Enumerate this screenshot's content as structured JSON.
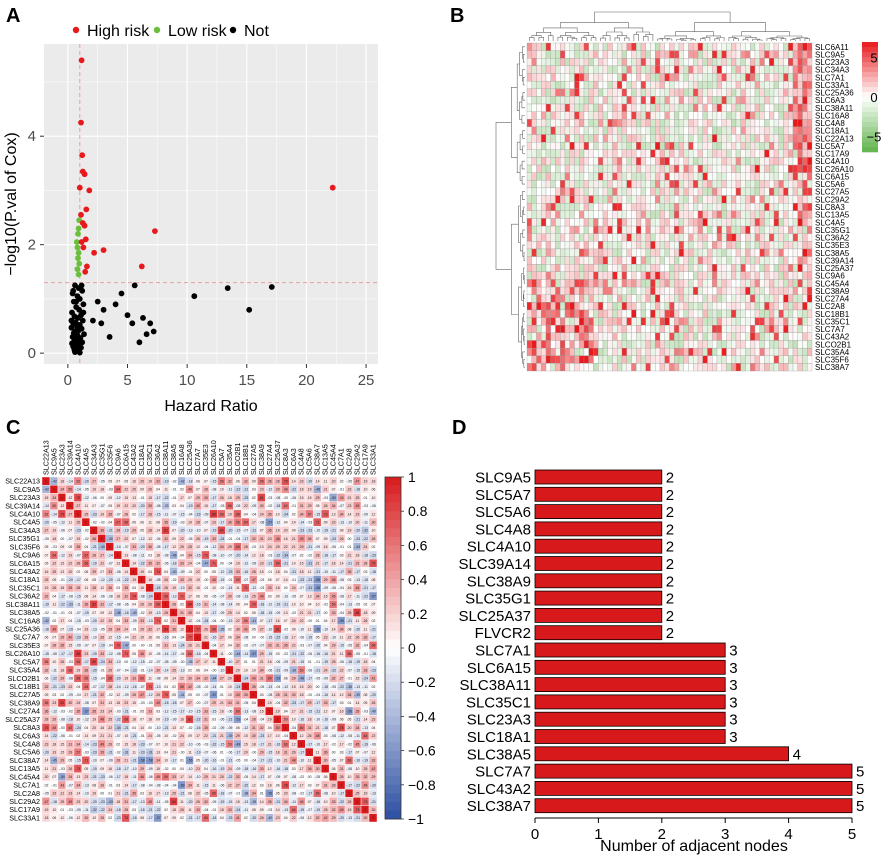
{
  "panels": {
    "a": {
      "letter": "A",
      "chart_data": {
        "type": "scatter",
        "xlabel": "Hazard Ratio",
        "ylabel": "−log10(P.val of Cox)",
        "xlim": [
          -2,
          26
        ],
        "ylim": [
          -0.2,
          5.7
        ],
        "xticks": [
          0,
          5,
          10,
          15,
          20,
          25
        ],
        "yticks": [
          0,
          2,
          4
        ],
        "reference_lines": {
          "x": 1,
          "y": 1.3
        },
        "legend": [
          "High risk",
          "Low risk",
          "Not"
        ],
        "colors": {
          "High risk": "#e8191c",
          "Low risk": "#6abf3a",
          "Not": "#000000"
        },
        "series": [
          {
            "name": "High risk",
            "points": [
              [
                1.15,
                5.4
              ],
              [
                1.1,
                4.25
              ],
              [
                1.2,
                3.65
              ],
              [
                1.25,
                3.35
              ],
              [
                1.4,
                3.3
              ],
              [
                1.0,
                3.05
              ],
              [
                1.8,
                3.0
              ],
              [
                1.55,
                2.65
              ],
              [
                1.1,
                2.55
              ],
              [
                1.25,
                2.4
              ],
              [
                1.4,
                2.35
              ],
              [
                1.5,
                2.1
              ],
              [
                1.15,
                2.05
              ],
              [
                1.3,
                1.95
              ],
              [
                3.0,
                1.9
              ],
              [
                2.2,
                1.85
              ],
              [
                1.6,
                1.6
              ],
              [
                1.45,
                1.5
              ],
              [
                7.3,
                2.25
              ],
              [
                6.2,
                1.6
              ],
              [
                22.2,
                3.05
              ]
            ]
          },
          {
            "name": "Low risk",
            "points": [
              [
                0.95,
                2.45
              ],
              [
                0.9,
                2.3
              ],
              [
                0.85,
                2.2
              ],
              [
                0.75,
                2.05
              ],
              [
                0.8,
                1.95
              ],
              [
                0.9,
                1.85
              ],
              [
                0.85,
                1.75
              ],
              [
                0.95,
                1.65
              ],
              [
                0.8,
                1.55
              ],
              [
                0.9,
                1.45
              ]
            ]
          },
          {
            "name": "Not",
            "points": [
              [
                0.6,
                1.25
              ],
              [
                0.9,
                1.2
              ],
              [
                1.2,
                1.15
              ],
              [
                0.4,
                1.1
              ],
              [
                0.8,
                1.05
              ],
              [
                1.0,
                1.0
              ],
              [
                0.5,
                0.95
              ],
              [
                1.3,
                0.9
              ],
              [
                0.7,
                0.85
              ],
              [
                0.95,
                0.8
              ],
              [
                0.35,
                0.75
              ],
              [
                1.1,
                0.7
              ],
              [
                0.55,
                0.68
              ],
              [
                0.85,
                0.65
              ],
              [
                1.25,
                0.6
              ],
              [
                0.65,
                0.57
              ],
              [
                0.45,
                0.55
              ],
              [
                1.0,
                0.52
              ],
              [
                0.75,
                0.5
              ],
              [
                0.3,
                0.47
              ],
              [
                1.15,
                0.45
              ],
              [
                0.9,
                0.42
              ],
              [
                0.6,
                0.4
              ],
              [
                0.5,
                0.37
              ],
              [
                1.35,
                0.35
              ],
              [
                0.8,
                0.33
              ],
              [
                0.4,
                0.3
              ],
              [
                1.05,
                0.28
              ],
              [
                0.7,
                0.26
              ],
              [
                0.55,
                0.24
              ],
              [
                0.95,
                0.22
              ],
              [
                1.2,
                0.2
              ],
              [
                0.35,
                0.18
              ],
              [
                0.85,
                0.16
              ],
              [
                0.65,
                0.14
              ],
              [
                0.45,
                0.12
              ],
              [
                1.1,
                0.1
              ],
              [
                0.75,
                0.08
              ],
              [
                0.55,
                0.06
              ],
              [
                0.9,
                0.04
              ],
              [
                0.6,
                0.02
              ],
              [
                1.0,
                0.01
              ],
              [
                0.5,
                0.3
              ],
              [
                0.8,
                0.45
              ],
              [
                0.3,
                0.6
              ],
              [
                1.3,
                0.75
              ],
              [
                0.7,
                0.95
              ],
              [
                0.45,
                1.15
              ],
              [
                1.15,
                1.25
              ],
              [
                0.6,
                0.15
              ],
              [
                2.1,
                0.6
              ],
              [
                2.5,
                0.95
              ],
              [
                2.8,
                0.55
              ],
              [
                3.0,
                0.8
              ],
              [
                3.5,
                0.3
              ],
              [
                4.0,
                0.9
              ],
              [
                4.5,
                1.1
              ],
              [
                5.0,
                0.7
              ],
              [
                5.6,
                1.25
              ],
              [
                5.4,
                0.55
              ],
              [
                6.3,
                0.65
              ],
              [
                6.6,
                0.35
              ],
              [
                6.9,
                0.55
              ],
              [
                7.2,
                0.4
              ],
              [
                6.0,
                0.2
              ],
              [
                10.6,
                1.05
              ],
              [
                13.4,
                1.2
              ],
              [
                15.2,
                0.8
              ],
              [
                17.1,
                1.22
              ]
            ]
          }
        ]
      }
    },
    "b": {
      "letter": "B",
      "chart_data": {
        "type": "heatmap",
        "row_labels": [
          "SLC6A11",
          "SLC9A5",
          "SLC23A3",
          "SLC34A3",
          "SLC7A1",
          "SLC33A1",
          "SLC25A36",
          "SLC6A3",
          "SLC38A11",
          "SLC16A8",
          "SLC4A8",
          "SLC18A1",
          "SLC22A13",
          "SLC5A7",
          "SLC17A9",
          "SLC4A10",
          "SLC26A10",
          "SLC6A15",
          "SLC5A6",
          "SLC27A5",
          "SLC29A2",
          "SLC8A3",
          "SLC13A5",
          "SLC4A5",
          "SLC35G1",
          "SLC36A2",
          "SLC35E3",
          "SLC38A5",
          "SLC39A14",
          "SLC25A37",
          "SLC9A6",
          "SLC45A4",
          "SLC38A9",
          "SLC27A4",
          "SLC2A8",
          "SLC18B1",
          "SLC35C1",
          "SLC7A7",
          "SLC43A2",
          "SLCO2B1",
          "SLC35A4",
          "SLC35F6",
          "SLC38A7"
        ],
        "n_samples": 60,
        "scale": {
          "ticks": [
            "5",
            "0",
            "−5"
          ],
          "min": -7,
          "max": 7
        },
        "colors": {
          "high": "#e8191c",
          "mid": "#ffffff",
          "low": "#5fb24a"
        }
      }
    },
    "c": {
      "letter": "C",
      "chart_data": {
        "type": "heatmap",
        "row_labels": [
          "SLC22A13",
          "SLC9A5",
          "SLC23A3",
          "SLC39A14",
          "SLC4A10",
          "SLC4A5",
          "SLC34A3",
          "SLC35G1",
          "SLC35F6",
          "SLC9A6",
          "SLC6A15",
          "SLC43A2",
          "SLC18A1",
          "SLC35C1",
          "SLC36A2",
          "SLC38A11",
          "SLC38A5",
          "SLC16A8",
          "SLC25A36",
          "SLC7A7",
          "SLC35E3",
          "SLC26A10",
          "SLC5A7",
          "SLC35A4",
          "SLCO2B1",
          "SLC18B1",
          "SLC27A5",
          "SLC38A9",
          "SLC27A4",
          "SLC25A37",
          "SLC8A3",
          "SLC6A3",
          "SLC4A8",
          "SLC5A6",
          "SLC38A7",
          "SLC13A5",
          "SLC45A4",
          "SLC7A1",
          "SLC2A8",
          "SLC29A2",
          "SLC17A9",
          "SLC33A1"
        ],
        "scale": {
          "ticks": [
            "1",
            "0.8",
            "0.6",
            "0.4",
            "0.2",
            "0",
            "−0.2",
            "−0.4",
            "−0.6",
            "−0.8",
            "−1"
          ],
          "min": -1,
          "max": 1
        },
        "colors": {
          "high": "#d7191c",
          "mid": "#ffffff",
          "low": "#2c4fa3"
        }
      }
    },
    "d": {
      "letter": "D",
      "chart_data": {
        "type": "bar",
        "orientation": "horizontal",
        "categories": [
          "SLC9A5",
          "SLC5A7",
          "SLC5A6",
          "SLC4A8",
          "SLC4A10",
          "SLC39A14",
          "SLC38A9",
          "SLC35G1",
          "SLC25A37",
          "FLVCR2",
          "SLC7A1",
          "SLC6A15",
          "SLC38A11",
          "SLC35C1",
          "SLC23A3",
          "SLC18A1",
          "SLC38A5",
          "SLC7A7",
          "SLC43A2",
          "SLC38A7"
        ],
        "values": [
          2,
          2,
          2,
          2,
          2,
          2,
          2,
          2,
          2,
          2,
          3,
          3,
          3,
          3,
          3,
          3,
          4,
          5,
          5,
          5
        ],
        "xlabel": "Number of adjacent nodes",
        "xlim": [
          0,
          5
        ],
        "xticks": [
          0,
          1,
          2,
          3,
          4,
          5
        ],
        "bar_color": "#d7191c"
      }
    }
  }
}
